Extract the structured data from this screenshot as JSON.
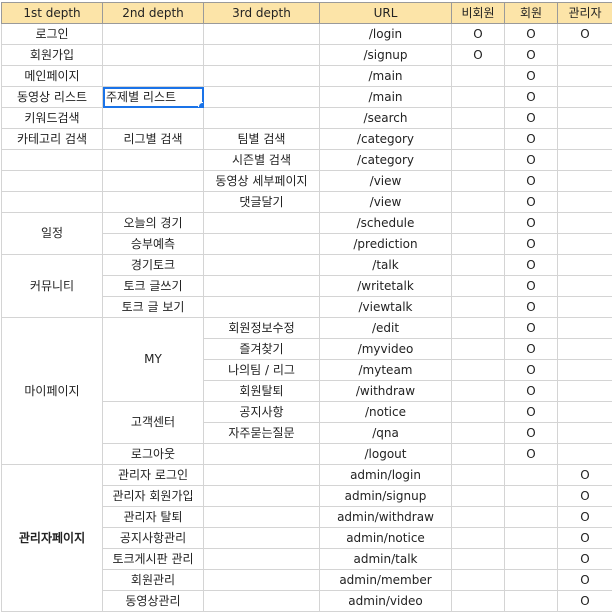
{
  "headers": [
    "1st depth",
    "2nd depth",
    "3rd depth",
    "URL",
    "비회원",
    "회원",
    "관리자"
  ],
  "rows": [
    {
      "d1": "로그인",
      "d2": "",
      "d3": "",
      "url": "/login",
      "guest": "O",
      "member": "O",
      "admin": "O"
    },
    {
      "d1": "회원가입",
      "d2": "",
      "d3": "",
      "url": "/signup",
      "guest": "O",
      "member": "O",
      "admin": ""
    },
    {
      "d1": "메인페이지",
      "d2": "",
      "d3": "",
      "url": "/main",
      "guest": "",
      "member": "O",
      "admin": ""
    },
    {
      "d1": "동영상 리스트",
      "d2": "주제별 리스트",
      "d3": "",
      "url": "/main",
      "guest": "",
      "member": "O",
      "admin": ""
    },
    {
      "d1": "키워드검색",
      "d2": "",
      "d3": "",
      "url": "/search",
      "guest": "",
      "member": "O",
      "admin": ""
    },
    {
      "d1": "카테고리 검색",
      "d2": "리그별 검색",
      "d3": "팀별 검색",
      "url": "/category",
      "guest": "",
      "member": "O",
      "admin": ""
    },
    {
      "d1": "",
      "d2": "",
      "d3": "시즌별 검색",
      "url": "/category",
      "guest": "",
      "member": "O",
      "admin": ""
    },
    {
      "d1": "",
      "d2": "",
      "d3": "동영상 세부페이지",
      "url": "/view",
      "guest": "",
      "member": "O",
      "admin": ""
    },
    {
      "d1": "",
      "d2": "",
      "d3": "댓글달기",
      "url": "/view",
      "guest": "",
      "member": "O",
      "admin": ""
    },
    {
      "d1": "",
      "d2": "오늘의 경기",
      "d3": "",
      "url": "/schedule",
      "guest": "",
      "member": "O",
      "admin": ""
    },
    {
      "d1": "",
      "d2": "승부예측",
      "d3": "",
      "url": "/prediction",
      "guest": "",
      "member": "O",
      "admin": ""
    },
    {
      "d1": "",
      "d2": "경기토크",
      "d3": "",
      "url": "/talk",
      "guest": "",
      "member": "O",
      "admin": ""
    },
    {
      "d1": "",
      "d2": "토크 글쓰기",
      "d3": "",
      "url": "/writetalk",
      "guest": "",
      "member": "O",
      "admin": ""
    },
    {
      "d1": "",
      "d2": "토크 글 보기",
      "d3": "",
      "url": "/viewtalk",
      "guest": "",
      "member": "O",
      "admin": ""
    },
    {
      "d1": "",
      "d2": "",
      "d3": "회원정보수정",
      "url": "/edit",
      "guest": "",
      "member": "O",
      "admin": ""
    },
    {
      "d1": "",
      "d2": "",
      "d3": "즐겨찾기",
      "url": "/myvideo",
      "guest": "",
      "member": "O",
      "admin": ""
    },
    {
      "d1": "",
      "d2": "",
      "d3": "나의팀 / 리그",
      "url": "/myteam",
      "guest": "",
      "member": "O",
      "admin": ""
    },
    {
      "d1": "",
      "d2": "",
      "d3": "회원탈퇴",
      "url": "/withdraw",
      "guest": "",
      "member": "O",
      "admin": ""
    },
    {
      "d1": "",
      "d2": "",
      "d3": "공지사항",
      "url": "/notice",
      "guest": "",
      "member": "O",
      "admin": ""
    },
    {
      "d1": "",
      "d2": "",
      "d3": "자주묻는질문",
      "url": "/qna",
      "guest": "",
      "member": "O",
      "admin": ""
    },
    {
      "d1": "",
      "d2": "로그아웃",
      "d3": "",
      "url": "/logout",
      "guest": "",
      "member": "O",
      "admin": ""
    },
    {
      "d1": "",
      "d2": "관리자 로그인",
      "d3": "",
      "url": "admin/login",
      "guest": "",
      "member": "",
      "admin": "O"
    },
    {
      "d1": "",
      "d2": "관리자 회원가입",
      "d3": "",
      "url": "admin/signup",
      "guest": "",
      "member": "",
      "admin": "O"
    },
    {
      "d1": "",
      "d2": "관리자 탈퇴",
      "d3": "",
      "url": "admin/withdraw",
      "guest": "",
      "member": "",
      "admin": "O"
    },
    {
      "d1": "",
      "d2": "공지사항관리",
      "d3": "",
      "url": "admin/notice",
      "guest": "",
      "member": "",
      "admin": "O"
    },
    {
      "d1": "",
      "d2": "토크게시판 관리",
      "d3": "",
      "url": "admin/talk",
      "guest": "",
      "member": "",
      "admin": "O"
    },
    {
      "d1": "",
      "d2": "회원관리",
      "d3": "",
      "url": "admin/member",
      "guest": "",
      "member": "",
      "admin": "O"
    },
    {
      "d1": "",
      "d2": "동영상관리",
      "d3": "",
      "url": "admin/video",
      "guest": "",
      "member": "",
      "admin": "O"
    }
  ],
  "merged": {
    "schedule": "일정",
    "community": "커뮤니티",
    "my": "MY",
    "support": "고객센터",
    "mypage": "마이페이지",
    "adminpage": "관리자페이지"
  },
  "selected_cell": "주제별 리스트"
}
